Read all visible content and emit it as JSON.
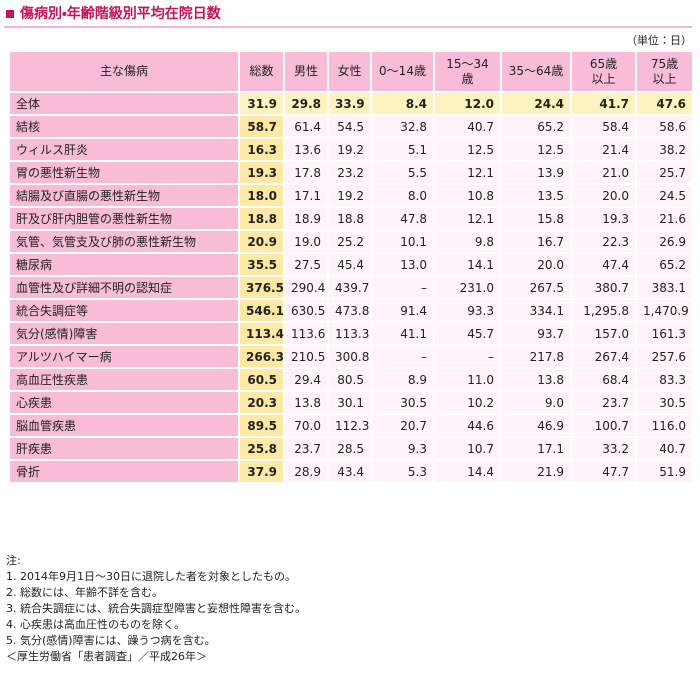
{
  "header": {
    "title": "傷病別・年齢階級別平均在院日数",
    "unit": "（単位：日）"
  },
  "table": {
    "columns": [
      "主な傷病",
      "総数",
      "男性",
      "女性",
      "0～14歳",
      "15～34歳",
      "35～64歳",
      [
        "65歳",
        "以上"
      ],
      [
        "75歳",
        "以上"
      ]
    ],
    "rows": [
      [
        "全体",
        "31.9",
        "29.8",
        "33.9",
        "8.4",
        "12.0",
        "24.4",
        "41.7",
        "47.6"
      ],
      [
        "結核",
        "58.7",
        "61.4",
        "54.5",
        "32.8",
        "40.7",
        "65.2",
        "58.4",
        "58.6"
      ],
      [
        "ウィルス肝炎",
        "16.3",
        "13.6",
        "19.2",
        "5.1",
        "12.5",
        "12.5",
        "21.4",
        "38.2"
      ],
      [
        "胃の悪性新生物",
        "19.3",
        "17.8",
        "23.2",
        "5.5",
        "12.1",
        "13.9",
        "21.0",
        "25.7"
      ],
      [
        "結腸及び直腸の悪性新生物",
        "18.0",
        "17.1",
        "19.2",
        "8.0",
        "10.8",
        "13.5",
        "20.0",
        "24.5"
      ],
      [
        "肝及び肝内胆管の悪性新生物",
        "18.8",
        "18.9",
        "18.8",
        "47.8",
        "12.1",
        "15.8",
        "19.3",
        "21.6"
      ],
      [
        "気管、気管支及び肺の悪性新生物",
        "20.9",
        "19.0",
        "25.2",
        "10.1",
        "9.8",
        "16.7",
        "22.3",
        "26.9"
      ],
      [
        "糖尿病",
        "35.5",
        "27.5",
        "45.4",
        "13.0",
        "14.1",
        "20.0",
        "47.4",
        "65.2"
      ],
      [
        "血管性及び詳細不明の認知症",
        "376.5",
        "290.4",
        "439.7",
        "–",
        "231.0",
        "267.5",
        "380.7",
        "383.1"
      ],
      [
        "統合失調症等",
        "546.1",
        "630.5",
        "473.8",
        "91.4",
        "93.3",
        "334.1",
        "1,295.8",
        "1,470.9"
      ],
      [
        "気分(感情)障害",
        "113.4",
        "113.6",
        "113.3",
        "41.1",
        "45.7",
        "93.7",
        "157.0",
        "161.3"
      ],
      [
        "アルツハイマー病",
        "266.3",
        "210.5",
        "300.8",
        "–",
        "–",
        "217.8",
        "267.4",
        "257.6"
      ],
      [
        "高血圧性疾患",
        "60.5",
        "29.4",
        "80.5",
        "8.9",
        "11.0",
        "13.8",
        "68.4",
        "83.3"
      ],
      [
        "心疾患",
        "20.3",
        "13.8",
        "30.1",
        "30.5",
        "10.2",
        "9.0",
        "23.7",
        "30.5"
      ],
      [
        "脳血管疾患",
        "89.5",
        "70.0",
        "112.3",
        "20.7",
        "44.6",
        "46.9",
        "100.7",
        "116.0"
      ],
      [
        "肝疾患",
        "25.8",
        "23.7",
        "28.5",
        "9.3",
        "10.7",
        "17.1",
        "33.2",
        "40.7"
      ],
      [
        "骨折",
        "37.9",
        "28.9",
        "43.4",
        "5.3",
        "14.4",
        "21.9",
        "47.7",
        "51.9"
      ]
    ]
  },
  "notes": [
    "注:",
    "1. 2014年9月1日～30日に退院した者を対象としたもの。",
    "2. 総数には、年齢不詳を含む。",
    "3. 統合失調症には、統合失調症型障害と妄想性障害を含む。",
    "4. 心疾患は高血圧性のものを除く。",
    "5. 気分(感情)障害には、躁うつ病を含む。"
  ],
  "source": "＜厚生労働省「患者調査」／平成26年＞"
}
